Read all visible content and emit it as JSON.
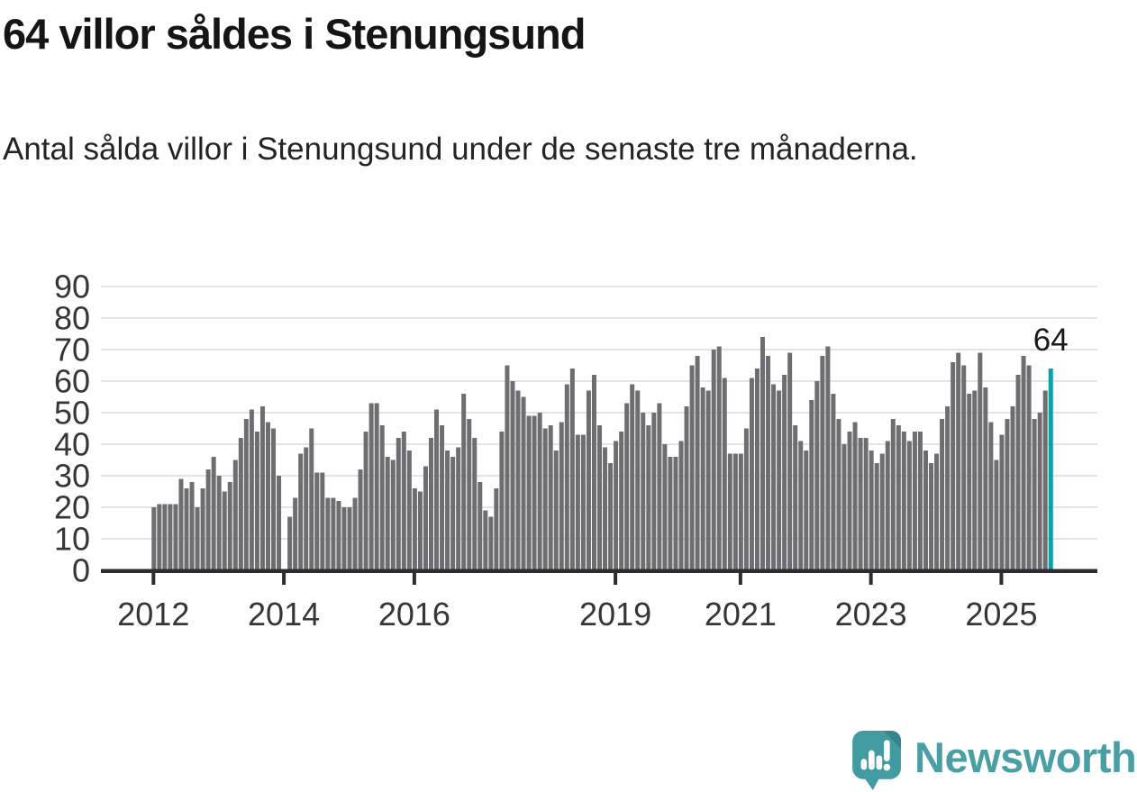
{
  "header": {
    "title": "64 villor såldes i Stenungsund",
    "subtitle": "Antal sålda villor i Stenungsund under de senaste tre månaderna."
  },
  "chart_data": {
    "type": "bar",
    "title": "64 villor såldes i Stenungsund",
    "description": "Antal sålda villor i Stenungsund under de senaste tre månaderna.",
    "x_unit": "month",
    "x_start": "2012-01",
    "values": [
      20,
      21,
      21,
      21,
      21,
      29,
      26,
      28,
      20,
      26,
      32,
      36,
      30,
      25,
      28,
      35,
      42,
      48,
      51,
      44,
      52,
      47,
      45,
      30,
      0,
      17,
      23,
      37,
      39,
      45,
      31,
      31,
      23,
      23,
      22,
      20,
      20,
      23,
      32,
      44,
      53,
      53,
      46,
      36,
      35,
      42,
      44,
      38,
      26,
      25,
      33,
      42,
      51,
      46,
      38,
      36,
      39,
      56,
      48,
      42,
      28,
      19,
      17,
      26,
      44,
      65,
      60,
      57,
      55,
      49,
      49,
      50,
      45,
      46,
      38,
      47,
      59,
      64,
      43,
      43,
      57,
      62,
      46,
      39,
      34,
      41,
      44,
      53,
      59,
      57,
      50,
      46,
      50,
      53,
      40,
      36,
      36,
      41,
      52,
      65,
      68,
      58,
      57,
      70,
      71,
      61,
      37,
      37,
      37,
      45,
      61,
      64,
      74,
      68,
      59,
      57,
      62,
      69,
      46,
      41,
      38,
      54,
      60,
      68,
      71,
      56,
      48,
      40,
      44,
      47,
      42,
      42,
      38,
      34,
      37,
      41,
      48,
      46,
      44,
      41,
      44,
      44,
      38,
      34,
      37,
      48,
      52,
      66,
      69,
      65,
      56,
      57,
      69,
      58,
      47,
      35,
      43,
      48,
      52,
      62,
      68,
      65,
      48,
      50,
      57,
      64
    ],
    "highlight_index": 165,
    "annotation": {
      "label": "64"
    },
    "x_axis": {
      "tick_labels": [
        "2012",
        "2014",
        "2016",
        "2019",
        "2021",
        "2023",
        "2025"
      ],
      "tick_value_indices": [
        0,
        24,
        48,
        85,
        108,
        132,
        156
      ]
    },
    "y_axis": {
      "min": 0,
      "max": 90,
      "step": 10,
      "tick_labels": [
        "0",
        "10",
        "20",
        "30",
        "40",
        "50",
        "60",
        "70",
        "80",
        "90"
      ],
      "grid": true
    },
    "legend": null,
    "colors": {
      "bar": "#6e6e72",
      "highlight": "#0ca1a3",
      "gridline": "#e3e3e3",
      "axis": "#2d2d2d",
      "axis_text": "#363636",
      "annotation_text": "#1a1a1a"
    }
  },
  "footer": {
    "brand": "Newsworthy",
    "brand_color": "#4a9fa5",
    "logo_icon": "newsworthy-speech-bubble-bar-chart-icon"
  }
}
